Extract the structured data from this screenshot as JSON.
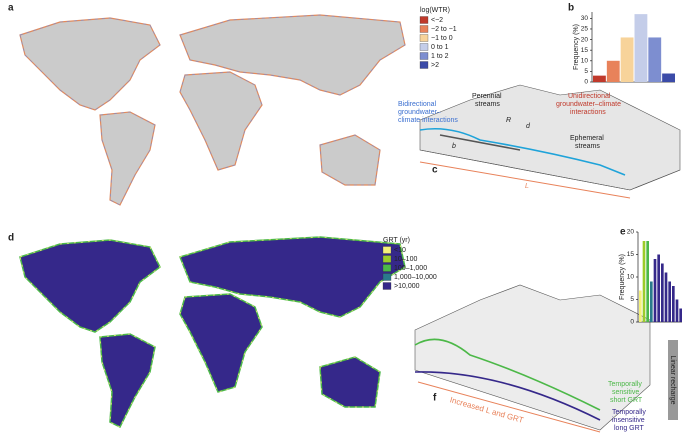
{
  "panels": {
    "a": "a",
    "b": "b",
    "c": "c",
    "d": "d",
    "e": "e",
    "f": "f"
  },
  "legend_a": {
    "title": "log(WTR)",
    "items": [
      {
        "label": "<−2",
        "color": "#c0392b"
      },
      {
        "label": "−2 to −1",
        "color": "#e8825a"
      },
      {
        "label": "−1 to 0",
        "color": "#f7d39a"
      },
      {
        "label": "0 to 1",
        "color": "#c4cde9"
      },
      {
        "label": "1 to 2",
        "color": "#7d8ed0"
      },
      {
        "label": ">2",
        "color": "#3b4ba8"
      }
    ]
  },
  "legend_d": {
    "title": "GRT (yr)",
    "items": [
      {
        "label": "<10",
        "color": "#f4f07a"
      },
      {
        "label": "10–100",
        "color": "#9ccc2a"
      },
      {
        "label": "100–1,000",
        "color": "#4cb848"
      },
      {
        "label": "1,000–10,000",
        "color": "#2a7a8c"
      },
      {
        "label": ">10,000",
        "color": "#35288a"
      }
    ]
  },
  "diagram_c": {
    "bidirectional": [
      "Bidirectional",
      "groundwater–",
      "climate interactions"
    ],
    "perennial": [
      "Perennial",
      "streams"
    ],
    "unidirectional": [
      "Unidirectional",
      "groundwater–climate",
      "interactions"
    ],
    "ephemeral": [
      "Ephemeral",
      "streams"
    ],
    "r": "R",
    "d": "d",
    "b": "b",
    "l": "L"
  },
  "diagram_f": {
    "increased": "Increased L and GRT",
    "sensitive": [
      "Temporally",
      "sensitive",
      "short GRT"
    ],
    "insensitive": [
      "Temporally",
      "insensitive",
      "long GRT"
    ],
    "recharge": "Linear recharge"
  },
  "chart_data": [
    {
      "type": "bar",
      "y_label": "Frequency (%)",
      "categories": [
        null,
        null,
        null,
        null,
        null,
        null
      ],
      "values": [
        3,
        10,
        21,
        32,
        21,
        4
      ],
      "colors": [
        "#c0392b",
        "#e8825a",
        "#f7d39a",
        "#c4cde9",
        "#7d8ed0",
        "#3b4ba8"
      ],
      "ylim": [
        0,
        33
      ],
      "yticks": [
        0,
        5,
        10,
        15,
        20,
        25,
        30
      ]
    },
    {
      "type": "bar",
      "y_label": "Frequency (%)",
      "categories": [
        null,
        null,
        null,
        null,
        null,
        null,
        null,
        null,
        null,
        null,
        null,
        null
      ],
      "values": [
        7,
        18,
        18,
        9,
        14,
        15,
        13,
        11,
        9,
        8,
        5,
        3
      ],
      "colors": [
        "#f4f07a",
        "#9ccc2a",
        "#4cb848",
        "#2a7a8c",
        "#35288a",
        "#35288a",
        "#35288a",
        "#35288a",
        "#35288a",
        "#35288a",
        "#35288a",
        "#35288a"
      ],
      "ylim": [
        0,
        20
      ],
      "yticks": [
        0,
        5,
        10,
        15,
        20
      ]
    }
  ]
}
